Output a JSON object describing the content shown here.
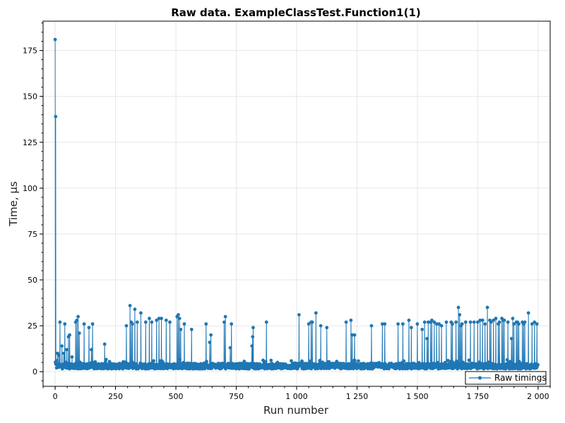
{
  "chart_data": {
    "type": "line",
    "title": "Raw data. ExampleClassTest.Function1(1)",
    "xlabel": "Run number",
    "ylabel": "Time, µs",
    "xlim": [
      -50,
      2050
    ],
    "ylim": [
      -8,
      191
    ],
    "x_ticks": [
      0,
      250,
      500,
      750,
      1000,
      1250,
      1500,
      1750,
      2000
    ],
    "x_tick_labels": [
      "0",
      "250",
      "500",
      "750",
      "1 000",
      "1 250",
      "1 500",
      "1 750",
      "2 000"
    ],
    "y_ticks": [
      0,
      25,
      50,
      75,
      100,
      125,
      150,
      175
    ],
    "y_tick_labels": [
      "0",
      "25",
      "50",
      "75",
      "100",
      "125",
      "150",
      "175"
    ],
    "grid": true,
    "legend": {
      "position": "bottom-right"
    },
    "series": [
      {
        "name": "Raw timings",
        "color": "#1f77b4",
        "marker": "circle",
        "n_points": 2000,
        "baseline_range": [
          1.5,
          4.5
        ],
        "peaks": [
          [
            0,
            181
          ],
          [
            2,
            139
          ],
          [
            5,
            6
          ],
          [
            10,
            10
          ],
          [
            15,
            9
          ],
          [
            20,
            27
          ],
          [
            28,
            14
          ],
          [
            36,
            10
          ],
          [
            40,
            26
          ],
          [
            48,
            12
          ],
          [
            55,
            19
          ],
          [
            60,
            20
          ],
          [
            70,
            8
          ],
          [
            85,
            27
          ],
          [
            90,
            28
          ],
          [
            95,
            30
          ],
          [
            100,
            21
          ],
          [
            120,
            26
          ],
          [
            140,
            24
          ],
          [
            150,
            12
          ],
          [
            155,
            26
          ],
          [
            205,
            15
          ],
          [
            295,
            25
          ],
          [
            310,
            36
          ],
          [
            315,
            27
          ],
          [
            320,
            26
          ],
          [
            330,
            34
          ],
          [
            340,
            27
          ],
          [
            355,
            32
          ],
          [
            375,
            27
          ],
          [
            390,
            29
          ],
          [
            400,
            27
          ],
          [
            420,
            28
          ],
          [
            430,
            29
          ],
          [
            440,
            29
          ],
          [
            460,
            28
          ],
          [
            475,
            27
          ],
          [
            505,
            30
          ],
          [
            510,
            31
          ],
          [
            515,
            29
          ],
          [
            520,
            23
          ],
          [
            535,
            26
          ],
          [
            565,
            23
          ],
          [
            625,
            26
          ],
          [
            640,
            16
          ],
          [
            645,
            20
          ],
          [
            700,
            27
          ],
          [
            705,
            30
          ],
          [
            725,
            13
          ],
          [
            730,
            26
          ],
          [
            815,
            14
          ],
          [
            818,
            19
          ],
          [
            820,
            24
          ],
          [
            875,
            27
          ],
          [
            1010,
            31
          ],
          [
            1050,
            26
          ],
          [
            1060,
            27
          ],
          [
            1065,
            27
          ],
          [
            1080,
            32
          ],
          [
            1100,
            25
          ],
          [
            1125,
            24
          ],
          [
            1205,
            27
          ],
          [
            1225,
            28
          ],
          [
            1230,
            20
          ],
          [
            1240,
            20
          ],
          [
            1310,
            25
          ],
          [
            1355,
            26
          ],
          [
            1365,
            26
          ],
          [
            1420,
            26
          ],
          [
            1440,
            26
          ],
          [
            1465,
            28
          ],
          [
            1475,
            24
          ],
          [
            1500,
            26
          ],
          [
            1520,
            23
          ],
          [
            1530,
            27
          ],
          [
            1540,
            18
          ],
          [
            1545,
            27
          ],
          [
            1555,
            27
          ],
          [
            1560,
            28
          ],
          [
            1570,
            27
          ],
          [
            1580,
            26
          ],
          [
            1590,
            26
          ],
          [
            1600,
            25
          ],
          [
            1620,
            27
          ],
          [
            1640,
            27
          ],
          [
            1645,
            26
          ],
          [
            1660,
            27
          ],
          [
            1670,
            35
          ],
          [
            1675,
            31
          ],
          [
            1680,
            25
          ],
          [
            1685,
            26
          ],
          [
            1700,
            27
          ],
          [
            1720,
            27
          ],
          [
            1735,
            27
          ],
          [
            1750,
            27
          ],
          [
            1760,
            28
          ],
          [
            1770,
            28
          ],
          [
            1780,
            26
          ],
          [
            1790,
            35
          ],
          [
            1800,
            28
          ],
          [
            1805,
            27
          ],
          [
            1815,
            28
          ],
          [
            1825,
            29
          ],
          [
            1835,
            26
          ],
          [
            1840,
            27
          ],
          [
            1850,
            29
          ],
          [
            1855,
            28
          ],
          [
            1860,
            28
          ],
          [
            1875,
            27
          ],
          [
            1890,
            18
          ],
          [
            1895,
            29
          ],
          [
            1900,
            26
          ],
          [
            1910,
            27
          ],
          [
            1915,
            27
          ],
          [
            1920,
            26
          ],
          [
            1935,
            27
          ],
          [
            1940,
            26
          ],
          [
            1945,
            27
          ],
          [
            1960,
            32
          ],
          [
            1975,
            26
          ],
          [
            1985,
            27
          ],
          [
            1995,
            26
          ]
        ]
      }
    ]
  }
}
